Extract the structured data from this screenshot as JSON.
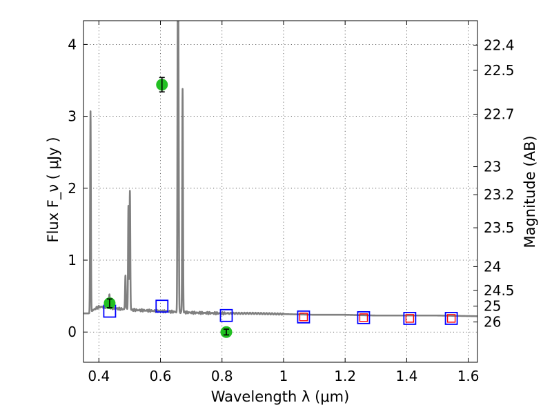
{
  "chart_data": {
    "type": "scatter",
    "xlabel": "Wavelength  λ (μm)",
    "ylabel": "Flux  F_ν  ( μJy )",
    "y2label": "Magnitude (AB)",
    "xlim": [
      0.35,
      1.63
    ],
    "ylim": [
      -0.42,
      4.33
    ],
    "x_ticks": [
      0.4,
      0.6,
      0.8,
      1.0,
      1.2,
      1.4,
      1.6
    ],
    "x_tick_labels": [
      "0.4",
      "0.6",
      "0.8",
      "1",
      "1.2",
      "1.4",
      "1.6"
    ],
    "y_ticks": [
      0,
      1,
      2,
      3,
      4
    ],
    "y_tick_labels": [
      "0",
      "1",
      "2",
      "3",
      "4"
    ],
    "y2_ticks": [
      {
        "label": "22.4",
        "flux": 3.99
      },
      {
        "label": "22.5",
        "flux": 3.64
      },
      {
        "label": "22.7",
        "flux": 3.03
      },
      {
        "label": "23",
        "flux": 2.3
      },
      {
        "label": "23.2",
        "flux": 1.91
      },
      {
        "label": "23.5",
        "flux": 1.45
      },
      {
        "label": "24",
        "flux": 0.91
      },
      {
        "label": "24.5",
        "flux": 0.58
      },
      {
        "label": "25",
        "flux": 0.36
      },
      {
        "label": "26",
        "flux": 0.14
      }
    ],
    "colors": {
      "sed": "#808080",
      "observed": "#22c022",
      "model": "#0000ff",
      "model_inner": "#ff0000"
    },
    "sed_continuum": [
      [
        0.35,
        0.26
      ],
      [
        0.37,
        0.26
      ],
      [
        0.38,
        0.3
      ],
      [
        0.39,
        0.33
      ],
      [
        0.4,
        0.35
      ],
      [
        0.42,
        0.35
      ],
      [
        0.45,
        0.33
      ],
      [
        0.5,
        0.31
      ],
      [
        0.55,
        0.3
      ],
      [
        0.6,
        0.29
      ],
      [
        0.65,
        0.28
      ],
      [
        0.7,
        0.27
      ],
      [
        0.8,
        0.26
      ],
      [
        0.9,
        0.26
      ],
      [
        1.0,
        0.25
      ],
      [
        1.1,
        0.24
      ],
      [
        1.2,
        0.24
      ],
      [
        1.3,
        0.23
      ],
      [
        1.4,
        0.23
      ],
      [
        1.5,
        0.23
      ],
      [
        1.63,
        0.22
      ]
    ],
    "sed_lines": [
      {
        "x": 0.3728,
        "peak": 3.07
      },
      {
        "x": 0.4342,
        "peak": 0.52
      },
      {
        "x": 0.4863,
        "peak": 0.8
      },
      {
        "x": 0.496,
        "peak": 1.75
      },
      {
        "x": 0.5008,
        "peak": 1.97
      },
      {
        "x": 0.6564,
        "peak": 4.6
      },
      {
        "x": 0.6585,
        "peak": 3.28
      },
      {
        "x": 0.672,
        "peak": 3.38
      }
    ],
    "observed_points": [
      {
        "x": 0.435,
        "y": 0.4,
        "err": 0.06
      },
      {
        "x": 0.605,
        "y": 3.44,
        "err": 0.1
      },
      {
        "x": 0.814,
        "y": 0.0,
        "err": 0.04
      }
    ],
    "model_points": [
      {
        "x": 0.435,
        "y": 0.29
      },
      {
        "x": 0.605,
        "y": 0.36
      },
      {
        "x": 0.814,
        "y": 0.23
      },
      {
        "x": 1.065,
        "y": 0.21,
        "inner": true
      },
      {
        "x": 1.26,
        "y": 0.2,
        "inner": true
      },
      {
        "x": 1.41,
        "y": 0.19,
        "inner": true
      },
      {
        "x": 1.545,
        "y": 0.19,
        "inner": true
      }
    ]
  }
}
